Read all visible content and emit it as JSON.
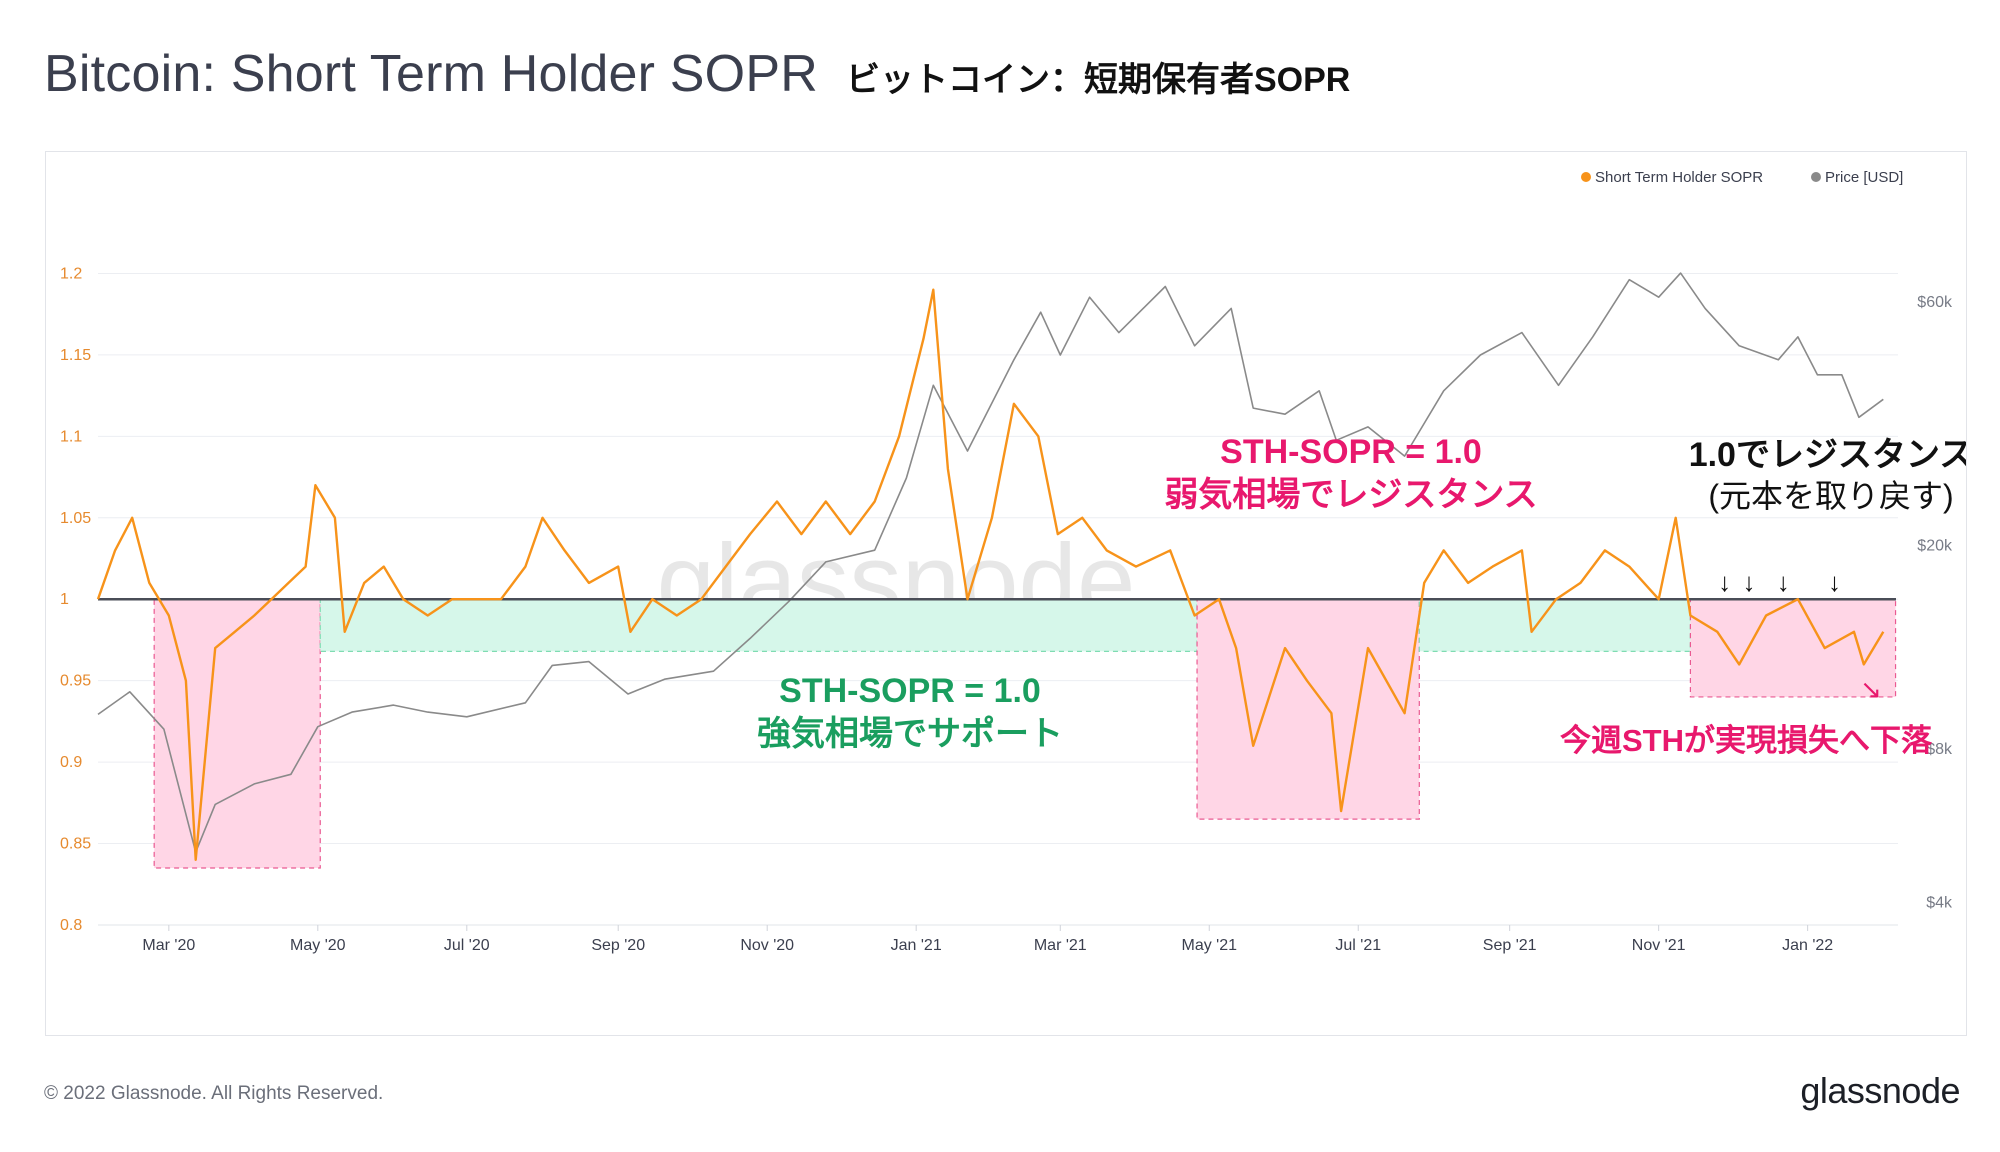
{
  "title": {
    "en": "Bitcoin: Short Term Holder SOPR",
    "jp": "ビットコイン：短期保有者SOPR"
  },
  "footer": {
    "copyright": "© 2022 Glassnode. All Rights Reserved.",
    "logo": "glassnode"
  },
  "watermark": "glassnode",
  "colors": {
    "sopr": "#f7931a",
    "price": "#8a8a8a",
    "bear_zone": "#ffd6e6",
    "bull_zone": "#d6f7ea",
    "pink_text": "#e8186d",
    "green_text": "#1a9e5f"
  },
  "chart_data": {
    "type": "line",
    "title": "Bitcoin: Short Term Holder SOPR",
    "x_start": "2020-02-01",
    "x_end": "2022-02-07",
    "x_tick_labels": [
      "Mar '20",
      "May '20",
      "Jul '20",
      "Sep '20",
      "Nov '20",
      "Jan '21",
      "Mar '21",
      "May '21",
      "Jul '21",
      "Sep '21",
      "Nov '21",
      "Jan '22"
    ],
    "x_tick_dates": [
      "2020-03-01",
      "2020-05-01",
      "2020-07-01",
      "2020-09-01",
      "2020-11-01",
      "2021-01-01",
      "2021-03-01",
      "2021-05-01",
      "2021-07-01",
      "2021-09-01",
      "2021-11-01",
      "2022-01-01"
    ],
    "y_left": {
      "label": "Short Term Holder SOPR",
      "range": [
        0.8,
        1.25
      ],
      "ticks": [
        "0.8",
        "0.85",
        "0.9",
        "0.95",
        "1",
        "1.05",
        "1.1",
        "1.15",
        "1.2"
      ],
      "tick_values": [
        0.8,
        0.85,
        0.9,
        0.95,
        1.0,
        1.05,
        1.1,
        1.15,
        1.2
      ]
    },
    "y_right": {
      "label": "Price [USD]",
      "scale": "log",
      "range": [
        3600,
        98000
      ],
      "ticks": [
        "$4k",
        "$8k",
        "$20k",
        "$60k"
      ],
      "tick_values": [
        4000,
        8000,
        20000,
        60000
      ]
    },
    "legend": [
      {
        "name": "Short Term Holder SOPR",
        "color": "#f7931a"
      },
      {
        "name": "Price [USD]",
        "color": "#8a8a8a"
      }
    ],
    "reference_line": 1.0,
    "series": [
      {
        "name": "Short Term Holder SOPR",
        "axis": "left",
        "points": [
          [
            "2020-02-01",
            1.0
          ],
          [
            "2020-02-08",
            1.03
          ],
          [
            "2020-02-15",
            1.05
          ],
          [
            "2020-02-22",
            1.01
          ],
          [
            "2020-03-01",
            0.99
          ],
          [
            "2020-03-08",
            0.95
          ],
          [
            "2020-03-12",
            0.84
          ],
          [
            "2020-03-20",
            0.97
          ],
          [
            "2020-03-28",
            0.98
          ],
          [
            "2020-04-05",
            0.99
          ],
          [
            "2020-04-12",
            1.0
          ],
          [
            "2020-04-19",
            1.01
          ],
          [
            "2020-04-26",
            1.02
          ],
          [
            "2020-04-30",
            1.07
          ],
          [
            "2020-05-08",
            1.05
          ],
          [
            "2020-05-12",
            0.98
          ],
          [
            "2020-05-20",
            1.01
          ],
          [
            "2020-05-28",
            1.02
          ],
          [
            "2020-06-05",
            1.0
          ],
          [
            "2020-06-15",
            0.99
          ],
          [
            "2020-06-25",
            1.0
          ],
          [
            "2020-07-05",
            1.0
          ],
          [
            "2020-07-15",
            1.0
          ],
          [
            "2020-07-25",
            1.02
          ],
          [
            "2020-08-01",
            1.05
          ],
          [
            "2020-08-10",
            1.03
          ],
          [
            "2020-08-20",
            1.01
          ],
          [
            "2020-09-01",
            1.02
          ],
          [
            "2020-09-06",
            0.98
          ],
          [
            "2020-09-15",
            1.0
          ],
          [
            "2020-09-25",
            0.99
          ],
          [
            "2020-10-05",
            1.0
          ],
          [
            "2020-10-15",
            1.02
          ],
          [
            "2020-10-25",
            1.04
          ],
          [
            "2020-11-05",
            1.06
          ],
          [
            "2020-11-15",
            1.04
          ],
          [
            "2020-11-25",
            1.06
          ],
          [
            "2020-12-05",
            1.04
          ],
          [
            "2020-12-15",
            1.06
          ],
          [
            "2020-12-25",
            1.1
          ],
          [
            "2021-01-04",
            1.16
          ],
          [
            "2021-01-08",
            1.19
          ],
          [
            "2021-01-14",
            1.08
          ],
          [
            "2021-01-22",
            1.0
          ],
          [
            "2021-02-01",
            1.05
          ],
          [
            "2021-02-10",
            1.12
          ],
          [
            "2021-02-20",
            1.1
          ],
          [
            "2021-02-28",
            1.04
          ],
          [
            "2021-03-10",
            1.05
          ],
          [
            "2021-03-20",
            1.03
          ],
          [
            "2021-04-01",
            1.02
          ],
          [
            "2021-04-15",
            1.03
          ],
          [
            "2021-04-25",
            0.99
          ],
          [
            "2021-05-05",
            1.0
          ],
          [
            "2021-05-12",
            0.97
          ],
          [
            "2021-05-19",
            0.91
          ],
          [
            "2021-06-01",
            0.97
          ],
          [
            "2021-06-10",
            0.95
          ],
          [
            "2021-06-20",
            0.93
          ],
          [
            "2021-06-24",
            0.87
          ],
          [
            "2021-07-05",
            0.97
          ],
          [
            "2021-07-20",
            0.93
          ],
          [
            "2021-07-28",
            1.01
          ],
          [
            "2021-08-05",
            1.03
          ],
          [
            "2021-08-15",
            1.01
          ],
          [
            "2021-08-25",
            1.02
          ],
          [
            "2021-09-06",
            1.03
          ],
          [
            "2021-09-10",
            0.98
          ],
          [
            "2021-09-20",
            1.0
          ],
          [
            "2021-09-30",
            1.01
          ],
          [
            "2021-10-10",
            1.03
          ],
          [
            "2021-10-20",
            1.02
          ],
          [
            "2021-11-01",
            1.0
          ],
          [
            "2021-11-08",
            1.05
          ],
          [
            "2021-11-14",
            0.99
          ],
          [
            "2021-11-25",
            0.98
          ],
          [
            "2021-12-04",
            0.96
          ],
          [
            "2021-12-15",
            0.99
          ],
          [
            "2021-12-28",
            1.0
          ],
          [
            "2022-01-08",
            0.97
          ],
          [
            "2022-01-20",
            0.98
          ],
          [
            "2022-01-24",
            0.96
          ],
          [
            "2022-02-01",
            0.98
          ]
        ]
      },
      {
        "name": "Price [USD]",
        "axis": "right",
        "points": [
          [
            "2020-02-01",
            9300
          ],
          [
            "2020-02-14",
            10300
          ],
          [
            "2020-02-28",
            8700
          ],
          [
            "2020-03-12",
            5000
          ],
          [
            "2020-03-20",
            6200
          ],
          [
            "2020-04-05",
            6800
          ],
          [
            "2020-04-20",
            7100
          ],
          [
            "2020-05-01",
            8800
          ],
          [
            "2020-05-15",
            9400
          ],
          [
            "2020-06-01",
            9700
          ],
          [
            "2020-06-15",
            9400
          ],
          [
            "2020-07-01",
            9200
          ],
          [
            "2020-07-25",
            9800
          ],
          [
            "2020-08-05",
            11600
          ],
          [
            "2020-08-20",
            11800
          ],
          [
            "2020-09-05",
            10200
          ],
          [
            "2020-09-20",
            10900
          ],
          [
            "2020-10-10",
            11300
          ],
          [
            "2020-10-25",
            13100
          ],
          [
            "2020-11-10",
            15500
          ],
          [
            "2020-11-25",
            18500
          ],
          [
            "2020-12-15",
            19500
          ],
          [
            "2020-12-28",
            27000
          ],
          [
            "2021-01-08",
            41000
          ],
          [
            "2021-01-22",
            30500
          ],
          [
            "2021-02-10",
            46000
          ],
          [
            "2021-02-21",
            57000
          ],
          [
            "2021-03-01",
            47000
          ],
          [
            "2021-03-13",
            61000
          ],
          [
            "2021-03-25",
            52000
          ],
          [
            "2021-04-13",
            64000
          ],
          [
            "2021-04-25",
            49000
          ],
          [
            "2021-05-10",
            58000
          ],
          [
            "2021-05-19",
            37000
          ],
          [
            "2021-06-01",
            36000
          ],
          [
            "2021-06-15",
            40000
          ],
          [
            "2021-06-22",
            32000
          ],
          [
            "2021-07-05",
            34000
          ],
          [
            "2021-07-20",
            29800
          ],
          [
            "2021-08-05",
            40000
          ],
          [
            "2021-08-20",
            47000
          ],
          [
            "2021-09-06",
            52000
          ],
          [
            "2021-09-21",
            41000
          ],
          [
            "2021-10-05",
            51000
          ],
          [
            "2021-10-20",
            66000
          ],
          [
            "2021-11-01",
            61000
          ],
          [
            "2021-11-10",
            68000
          ],
          [
            "2021-11-20",
            58000
          ],
          [
            "2021-12-04",
            49000
          ],
          [
            "2021-12-20",
            46000
          ],
          [
            "2021-12-28",
            51000
          ],
          [
            "2022-01-05",
            43000
          ],
          [
            "2022-01-15",
            43000
          ],
          [
            "2022-01-22",
            35500
          ],
          [
            "2022-02-01",
            38500
          ]
        ]
      }
    ],
    "zones": [
      {
        "kind": "bear",
        "start": "2020-02-24",
        "end": "2020-05-02",
        "y_from": 1.0,
        "y_to": 0.835
      },
      {
        "kind": "bull",
        "start": "2020-05-02",
        "end": "2021-04-26",
        "y_from": 1.0,
        "y_to": 0.968
      },
      {
        "kind": "bear",
        "start": "2021-04-26",
        "end": "2021-07-26",
        "y_from": 1.0,
        "y_to": 0.865
      },
      {
        "kind": "bull",
        "start": "2021-07-26",
        "end": "2021-11-14",
        "y_from": 1.0,
        "y_to": 0.968
      },
      {
        "kind": "bear",
        "start": "2021-11-14",
        "end": "2022-02-06",
        "y_from": 1.0,
        "y_to": 0.94
      }
    ],
    "annotations": {
      "bear_resistance_line1": "STH-SOPR = 1.0",
      "bear_resistance_line2": "弱気相場でレジスタンス",
      "bull_support_line1": "STH-SOPR = 1.0",
      "bull_support_line2": "強気相場でサポート",
      "recent_resistance_line1": "1.0でレジスタンス",
      "recent_resistance_line2": "(元本を取り戻す)",
      "this_week": "今週STHが実現損失へ下落",
      "down_arrow": "↓",
      "down_right_arrow": "↘"
    },
    "arrow_dates": [
      "2021-11-28",
      "2021-12-08",
      "2021-12-22",
      "2022-01-12"
    ]
  }
}
